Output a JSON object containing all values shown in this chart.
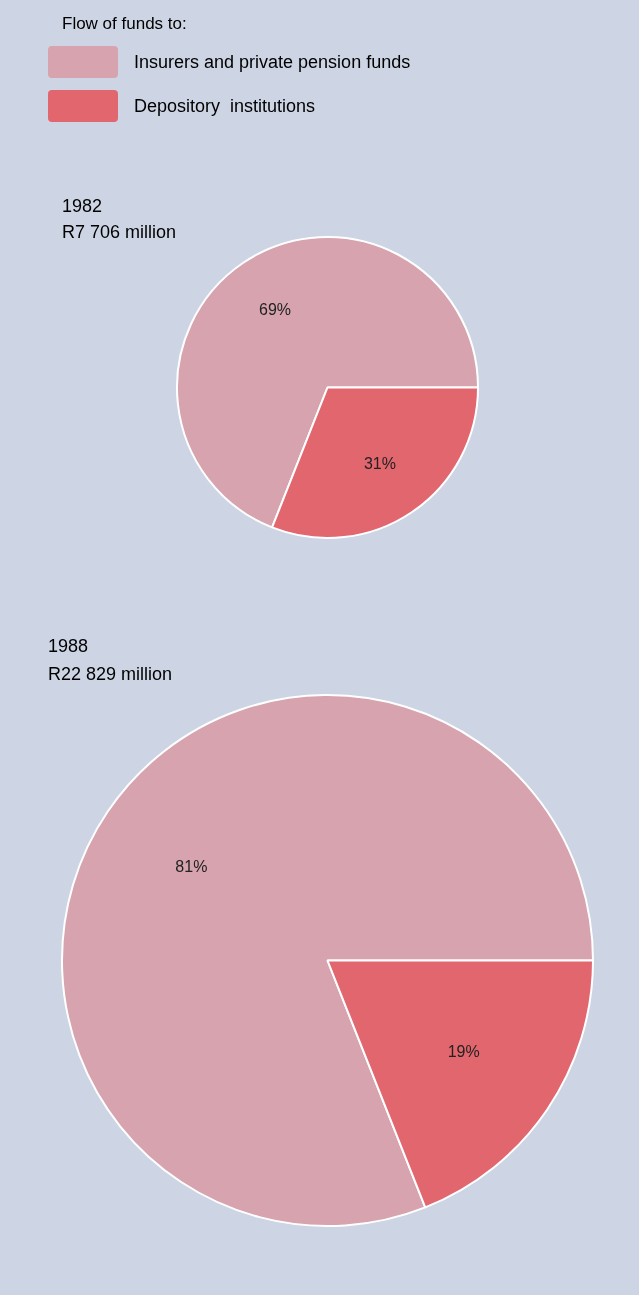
{
  "chart_data": [
    {
      "type": "pie",
      "legend_title": "Flow of funds to:",
      "legend": "top left",
      "title": "1982",
      "subtitle": "R7 706 million",
      "categories": [
        "Insurers and private pension funds",
        "Depository  institutions"
      ],
      "values": [
        69,
        31
      ],
      "value_labels": [
        "69%",
        "31%"
      ],
      "colors": [
        "#d6a3ae",
        "#e2666e"
      ]
    },
    {
      "type": "pie",
      "title": "1988",
      "subtitle": "R22 829 million",
      "categories": [
        null,
        null
      ],
      "values": [
        81,
        19
      ],
      "value_labels": [
        "81%",
        "19%"
      ],
      "colors": [
        "#d6a3ae",
        "#e2666e"
      ]
    }
  ]
}
